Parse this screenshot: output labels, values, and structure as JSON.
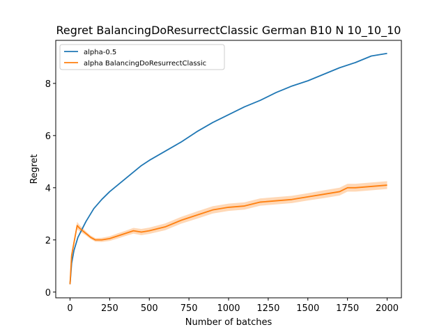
{
  "chart_data": {
    "type": "line",
    "title": "Regret BalancingDoResurrectClassic German B10 N 10_10_10",
    "xlabel": "Number of batches",
    "ylabel": "Regret",
    "xlim": [
      -90,
      2090
    ],
    "ylim": [
      -0.22,
      9.65
    ],
    "xticks": [
      0,
      250,
      500,
      750,
      1000,
      1250,
      1500,
      1750,
      2000
    ],
    "xtick_labels": [
      "0",
      "250",
      "500",
      "750",
      "1000",
      "1250",
      "1500",
      "1750",
      "2000"
    ],
    "yticks": [
      0,
      2,
      4,
      6,
      8
    ],
    "ytick_labels": [
      "0",
      "2",
      "4",
      "6",
      "8"
    ],
    "grid": false,
    "legend_position": "upper-left",
    "series": [
      {
        "name": "alpha-0.5",
        "color": "#1f77b4",
        "x": [
          0,
          10,
          25,
          50,
          75,
          100,
          150,
          200,
          250,
          300,
          350,
          400,
          450,
          500,
          600,
          700,
          800,
          900,
          1000,
          1100,
          1200,
          1300,
          1400,
          1500,
          1600,
          1700,
          1800,
          1900,
          2000
        ],
        "y": [
          0.3,
          1.1,
          1.6,
          2.1,
          2.4,
          2.7,
          3.2,
          3.55,
          3.85,
          4.1,
          4.35,
          4.6,
          4.85,
          5.05,
          5.4,
          5.75,
          6.15,
          6.5,
          6.8,
          7.1,
          7.35,
          7.65,
          7.9,
          8.1,
          8.35,
          8.6,
          8.8,
          9.05,
          9.15
        ]
      },
      {
        "name": "alpha BalancingDoResurrectClassic",
        "color": "#ff7f0e",
        "band_color": "#ff7f0e",
        "x": [
          0,
          10,
          25,
          45,
          60,
          80,
          100,
          130,
          160,
          200,
          250,
          300,
          350,
          400,
          450,
          500,
          600,
          700,
          800,
          900,
          1000,
          1100,
          1200,
          1300,
          1400,
          1500,
          1600,
          1700,
          1750,
          1800,
          1900,
          2000
        ],
        "y": [
          0.3,
          1.4,
          1.9,
          2.55,
          2.45,
          2.35,
          2.25,
          2.1,
          2.0,
          2.0,
          2.05,
          2.15,
          2.25,
          2.35,
          2.3,
          2.35,
          2.5,
          2.75,
          2.95,
          3.15,
          3.25,
          3.3,
          3.45,
          3.5,
          3.55,
          3.65,
          3.75,
          3.85,
          4.0,
          4.0,
          4.05,
          4.1
        ],
        "band_halfwidth": [
          0.05,
          0.1,
          0.12,
          0.14,
          0.12,
          0.1,
          0.08,
          0.07,
          0.07,
          0.08,
          0.09,
          0.1,
          0.1,
          0.11,
          0.12,
          0.12,
          0.13,
          0.13,
          0.14,
          0.14,
          0.14,
          0.14,
          0.14,
          0.14,
          0.14,
          0.14,
          0.15,
          0.15,
          0.15,
          0.15,
          0.15,
          0.15
        ]
      }
    ]
  }
}
